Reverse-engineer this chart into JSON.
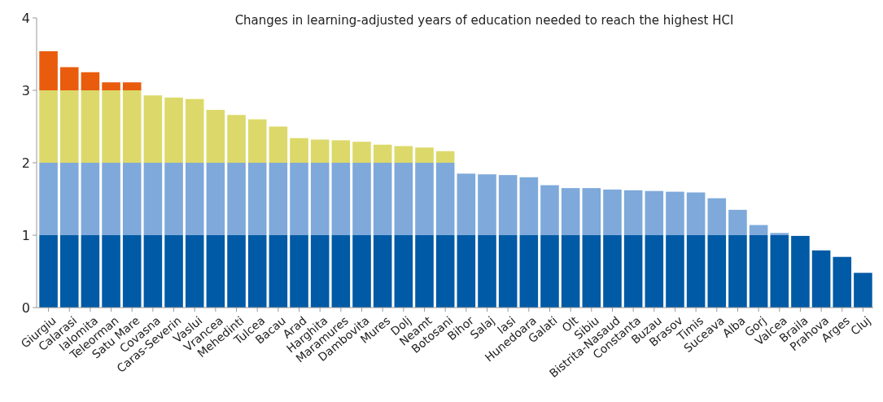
{
  "chart_data": {
    "type": "bar",
    "stacked": true,
    "title": "Changes in learning-adjusted years of education needed to reach the highest HCI",
    "categories": [
      "Giurgiu",
      "Calarasi",
      "Ialomita",
      "Teleorman",
      "Satu Mare",
      "Covasna",
      "Caras-Severin",
      "Vaslui",
      "Vrancea",
      "Mehedinti",
      "Tulcea",
      "Bacau",
      "Arad",
      "Harghita",
      "Maramures",
      "Dambovita",
      "Mures",
      "Dolj",
      "Neamt",
      "Botosani",
      "Bihor",
      "Salaj",
      "Iasi",
      "Hunedoara",
      "Galati",
      "Olt",
      "Sibiu",
      "Bistrita-Nasaud",
      "Constanta",
      "Buzau",
      "Brasov",
      "Timis",
      "Suceava",
      "Alba",
      "Gorj",
      "Valcea",
      "Braila",
      "Prahova",
      "Arges",
      "Cluj"
    ],
    "series": [
      {
        "color": "#005aa5",
        "values": [
          1,
          1,
          1,
          1,
          1,
          1,
          1,
          1,
          1,
          1,
          1,
          1,
          1,
          1,
          1,
          1,
          1,
          1,
          1,
          1,
          1,
          1,
          1,
          1,
          1,
          1,
          1,
          1,
          1,
          1,
          1,
          1,
          1,
          1,
          1,
          1,
          0.99,
          0.79,
          0.7,
          0.48
        ]
      },
      {
        "color": "#7ea9da",
        "values": [
          1,
          1,
          1,
          1,
          1,
          1,
          1,
          1,
          1,
          1,
          1,
          1,
          1,
          1,
          1,
          1,
          1,
          1,
          1,
          1,
          0.85,
          0.84,
          0.83,
          0.8,
          0.69,
          0.65,
          0.65,
          0.63,
          0.62,
          0.61,
          0.6,
          0.59,
          0.51,
          0.35,
          0.14,
          0.03,
          null,
          null,
          null,
          null
        ]
      },
      {
        "color": "#dcd96a",
        "values": [
          1,
          1,
          1,
          1,
          1,
          0.93,
          0.9,
          0.88,
          0.73,
          0.66,
          0.6,
          0.5,
          0.34,
          0.32,
          0.31,
          0.29,
          0.25,
          0.23,
          0.21,
          0.16,
          null,
          null,
          null,
          null,
          null,
          null,
          null,
          null,
          null,
          null,
          null,
          null,
          null,
          null,
          null,
          null,
          null,
          null,
          null,
          null
        ]
      },
      {
        "color": "#e95c0d",
        "values": [
          0.54,
          0.32,
          0.25,
          0.11,
          0.11,
          null,
          null,
          null,
          null,
          null,
          null,
          null,
          null,
          null,
          null,
          null,
          null,
          null,
          null,
          null,
          null,
          null,
          null,
          null,
          null,
          null,
          null,
          null,
          null,
          null,
          null,
          null,
          null,
          null,
          null,
          null,
          null,
          null,
          null,
          null
        ]
      }
    ],
    "ylim": [
      0,
      4
    ],
    "yticks": [
      0,
      1,
      2,
      3,
      4
    ]
  }
}
